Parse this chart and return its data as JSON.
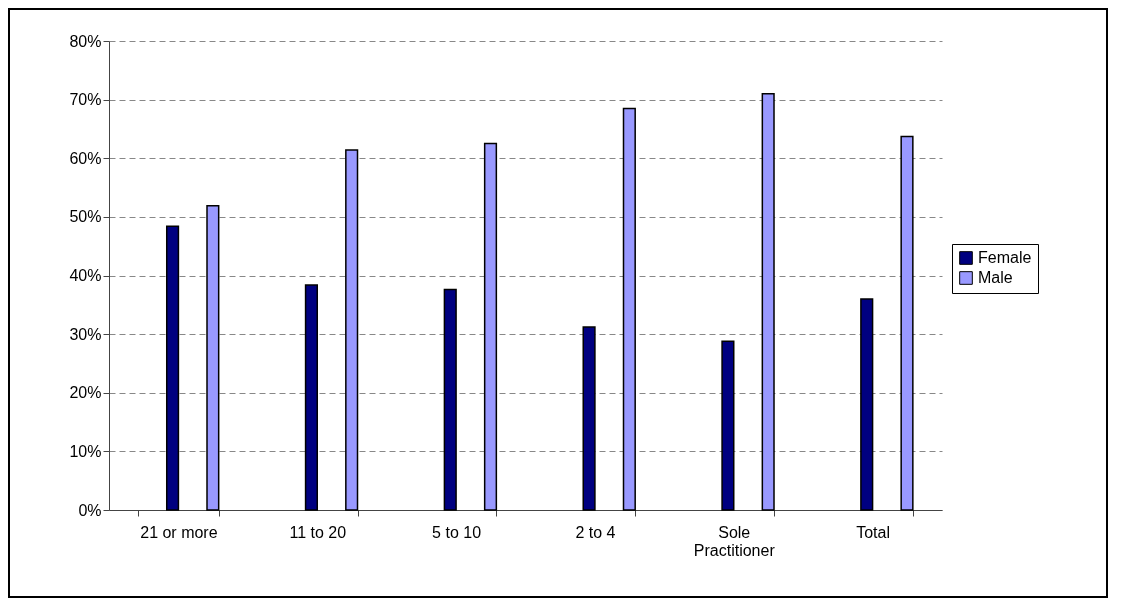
{
  "chart_data": {
    "type": "bar",
    "categories": [
      "21 or more",
      "11 to 20",
      "5 to 10",
      "2 to 4",
      "Sole Practitioner",
      "Total"
    ],
    "series": [
      {
        "name": "Female",
        "color": "#000080",
        "values": [
          48.4,
          38.4,
          37.6,
          31.2,
          28.8,
          36.0
        ]
      },
      {
        "name": "Male",
        "color": "#9999ff",
        "values": [
          51.9,
          61.4,
          62.5,
          68.5,
          71.0,
          63.7
        ]
      }
    ],
    "ylim": [
      0,
      80
    ],
    "yticks": [
      {
        "value": 0,
        "label": "0%"
      },
      {
        "value": 10,
        "label": "10%"
      },
      {
        "value": 20,
        "label": "20%"
      },
      {
        "value": 30,
        "label": "30%"
      },
      {
        "value": 40,
        "label": "40%"
      },
      {
        "value": 50,
        "label": "50%"
      },
      {
        "value": 60,
        "label": "60%"
      },
      {
        "value": 70,
        "label": "70%"
      },
      {
        "value": 80,
        "label": "80%"
      }
    ],
    "grid": "y",
    "legend": "right"
  }
}
